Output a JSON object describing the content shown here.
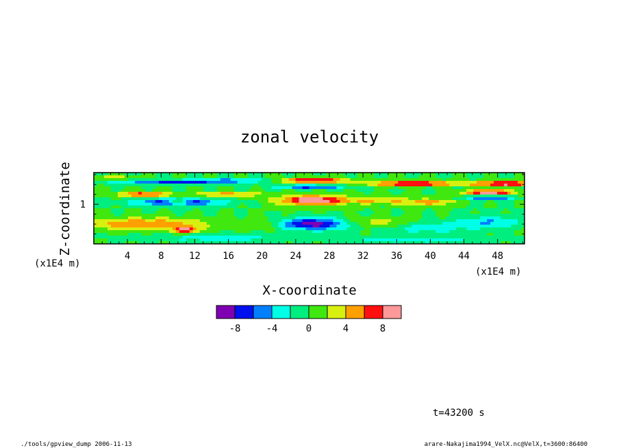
{
  "chart_data": {
    "type": "heatmap",
    "title": "zonal velocity",
    "xlabel": "X-coordinate",
    "ylabel": "Z-coordinate",
    "x_unit": "(x1E4 m)",
    "z_unit": "(x1E4 m)",
    "x_ticks": [
      "4",
      "8",
      "12",
      "16",
      "20",
      "24",
      "28",
      "32",
      "36",
      "40",
      "44",
      "48"
    ],
    "x_tick_values": [
      4,
      8,
      12,
      16,
      20,
      24,
      28,
      32,
      36,
      40,
      44,
      48
    ],
    "xlim": [
      0,
      51.2
    ],
    "z_ticks": [
      "1"
    ],
    "z_tick_values": [
      1
    ],
    "zlim": [
      0,
      1.8
    ],
    "colorbar": {
      "levels": [
        -10,
        -8,
        -6,
        -4,
        -2,
        0,
        2,
        4,
        6,
        8,
        10
      ],
      "tick_labels": [
        "-8",
        "-4",
        "0",
        "4",
        "8"
      ],
      "tick_values": [
        -8,
        -4,
        0,
        4,
        8
      ],
      "colors": [
        "#7f00b2",
        "#0010ee",
        "#0080ff",
        "#00ffe6",
        "#00ee80",
        "#40e810",
        "#d8f010",
        "#ffa000",
        "#ff1010",
        "#ff9999"
      ]
    },
    "background_color": "#33e070",
    "features": [
      {
        "x": 2,
        "z": 1.68,
        "sx": 3,
        "sz": 0.05,
        "v": 3
      },
      {
        "x": 9,
        "z": 1.55,
        "sx": 7,
        "sz": 0.05,
        "v": -6
      },
      {
        "x": 16,
        "z": 1.6,
        "sx": 6,
        "sz": 0.05,
        "v": -5
      },
      {
        "x": 26,
        "z": 1.6,
        "sx": 4,
        "sz": 0.06,
        "v": 10
      },
      {
        "x": 26,
        "z": 1.44,
        "sx": 4,
        "sz": 0.05,
        "v": -7
      },
      {
        "x": 38,
        "z": 1.52,
        "sx": 5,
        "sz": 0.06,
        "v": 10
      },
      {
        "x": 49,
        "z": 1.52,
        "sx": 4,
        "sz": 0.06,
        "v": 10
      },
      {
        "x": 47,
        "z": 1.3,
        "sx": 3,
        "sz": 0.06,
        "v": 10
      },
      {
        "x": 47,
        "z": 1.15,
        "sx": 3,
        "sz": 0.05,
        "v": -6
      },
      {
        "x": 10,
        "z": 1.05,
        "sx": 5,
        "sz": 0.08,
        "v": -9
      },
      {
        "x": 10,
        "z": 1.05,
        "sx": 1.5,
        "sz": 0.04,
        "v": 10
      },
      {
        "x": 6,
        "z": 1.25,
        "sx": 3,
        "sz": 0.06,
        "v": 8
      },
      {
        "x": 16,
        "z": 1.25,
        "sx": 4,
        "sz": 0.05,
        "v": 6
      },
      {
        "x": 26,
        "z": 1.1,
        "sx": 4,
        "sz": 0.12,
        "v": 10
      },
      {
        "x": 34,
        "z": 1.1,
        "sx": 4,
        "sz": 0.1,
        "v": 4
      },
      {
        "x": 40,
        "z": 1.05,
        "sx": 3,
        "sz": 0.08,
        "v": 5
      },
      {
        "x": 6,
        "z": 0.5,
        "sx": 7,
        "sz": 0.15,
        "v": 6
      },
      {
        "x": 11,
        "z": 0.35,
        "sx": 1.5,
        "sz": 0.08,
        "v": 8
      },
      {
        "x": 26,
        "z": 0.5,
        "sx": 4,
        "sz": 0.15,
        "v": -9
      },
      {
        "x": 40,
        "z": 0.4,
        "sx": 5,
        "sz": 0.15,
        "v": -3
      },
      {
        "x": 47,
        "z": 0.55,
        "sx": 4,
        "sz": 0.15,
        "v": -4
      },
      {
        "x": 34,
        "z": 0.55,
        "sx": 4,
        "sz": 0.12,
        "v": 3
      },
      {
        "x": 20,
        "z": 0.5,
        "sx": 3,
        "sz": 0.15,
        "v": 2
      },
      {
        "x": 15,
        "z": 0.15,
        "sx": 8,
        "sz": 0.1,
        "v": -3
      },
      {
        "x": 38,
        "z": 0.1,
        "sx": 8,
        "sz": 0.08,
        "v": -3
      }
    ]
  },
  "time_label": "t=43200 s",
  "footer_left": "./tools/gpview_dump  2006-11-13",
  "footer_right": "arare-Nakajima1994_VelX.nc@VelX,t=3600:86400"
}
